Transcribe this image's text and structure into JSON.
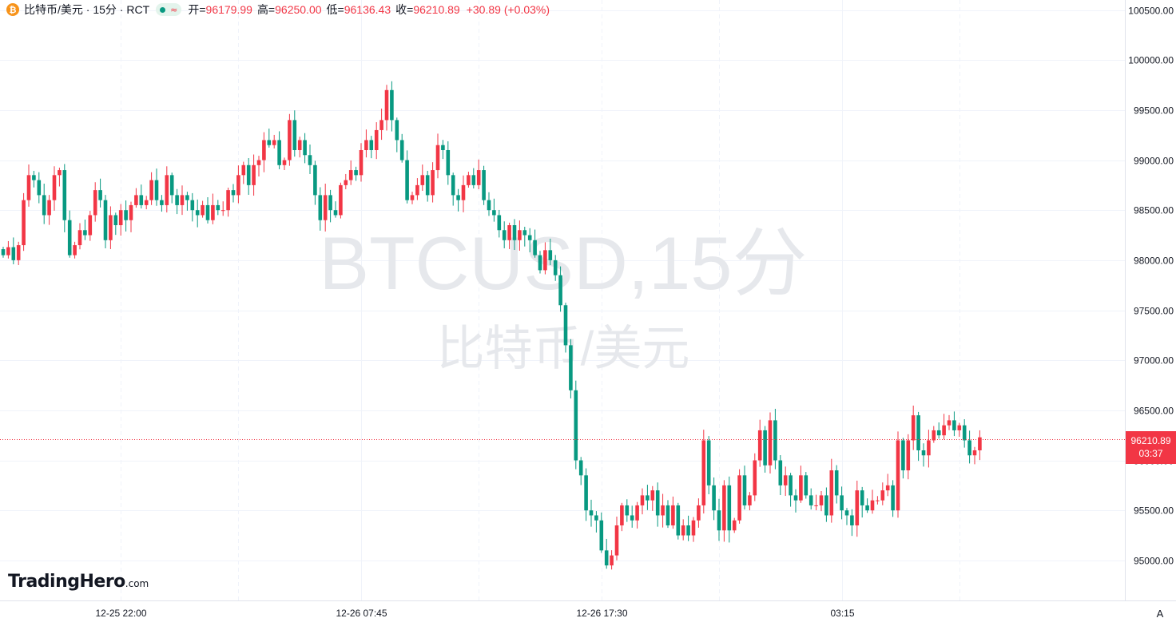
{
  "legend": {
    "coin_icon": "bitcoin-icon",
    "coin_glyph": "₿",
    "symbol": "比特币/美元 · 15分 · RCT",
    "status_delay_glyph": "≈",
    "open_label": "开=",
    "open": "96179.99",
    "high_label": "高=",
    "high": "96250.00",
    "low_label": "低=",
    "low": "96136.43",
    "close_label": "收=",
    "close": "96210.89",
    "change": "+30.89 (+0.03%)"
  },
  "watermark": {
    "line1": "BTCUSD,15分",
    "line2": "比特币/美元"
  },
  "last_price": {
    "value": "96210.89",
    "countdown": "03:37"
  },
  "logo": {
    "main": "TradingHero",
    "suffix": ".com"
  },
  "auto_button": "A",
  "colors": {
    "up": "#f23645",
    "down": "#089981",
    "grid": "#f0f3fa",
    "axis_text": "#131722"
  },
  "chart_data": {
    "type": "candlestick",
    "interval": "15分",
    "y_range": [
      94600,
      100600
    ],
    "y_ticks": [
      95000,
      95500,
      96000,
      96500,
      97000,
      97500,
      98000,
      98500,
      99000,
      99500,
      100000,
      100500
    ],
    "y_tick_labels": [
      "95000.00",
      "95500.00",
      "96000.00",
      "96500.00",
      "97000.00",
      "97500.00",
      "98000.00",
      "98500.00",
      "99000.00",
      "99500.00",
      "100000.00",
      "100500.00"
    ],
    "x_labels": [
      "12-25 22:00",
      "12-26 07:45",
      "12-26 17:30",
      "03:15"
    ],
    "last_price": 96210.89,
    "closes": [
      98050,
      98130,
      98000,
      98150,
      98600,
      98850,
      98800,
      98650,
      98450,
      98600,
      98850,
      98900,
      98400,
      98050,
      98150,
      98300,
      98250,
      98450,
      98700,
      98600,
      98200,
      98450,
      98350,
      98500,
      98400,
      98550,
      98650,
      98550,
      98600,
      98800,
      98600,
      98550,
      98850,
      98650,
      98550,
      98650,
      98600,
      98500,
      98450,
      98550,
      98400,
      98550,
      98500,
      98500,
      98700,
      98650,
      98850,
      98950,
      98750,
      98950,
      99000,
      99200,
      99150,
      99200,
      98950,
      99000,
      99400,
      99100,
      99200,
      99050,
      98950,
      98650,
      98400,
      98650,
      98500,
      98450,
      98750,
      98800,
      98900,
      98850,
      99100,
      99200,
      99100,
      99300,
      99400,
      99700,
      99400,
      99200,
      99000,
      98600,
      98650,
      98750,
      98850,
      98650,
      98900,
      99150,
      99100,
      98850,
      98650,
      98600,
      98750,
      98850,
      98750,
      98900,
      98600,
      98500,
      98450,
      98300,
      98200,
      98350,
      98200,
      98300,
      98250,
      98200,
      98050,
      97900,
      98100,
      98000,
      97850,
      97550,
      97150,
      96700,
      96000,
      95850,
      95500,
      95450,
      95400,
      95100,
      94950,
      95050,
      95350,
      95550,
      95450,
      95400,
      95550,
      95650,
      95600,
      95700,
      95450,
      95550,
      95350,
      95550,
      95250,
      95350,
      95250,
      95400,
      95550,
      96200,
      95750,
      95500,
      95300,
      95750,
      95300,
      95400,
      95850,
      95550,
      95650,
      96000,
      96300,
      95950,
      96400,
      96000,
      95750,
      95850,
      95650,
      95600,
      95850,
      95650,
      95550,
      95550,
      95650,
      95450,
      95900,
      95650,
      95500,
      95450,
      95350,
      95700,
      95550,
      95500,
      95600,
      95600,
      95700,
      95750,
      95500,
      96200,
      95900,
      96200,
      96450,
      96100,
      96050,
      96200,
      96300,
      96250,
      96350,
      96400,
      96300,
      96350,
      96200,
      96050,
      96100,
      96230
    ],
    "ohlc_shown": {
      "open": 96179.99,
      "high": 96250.0,
      "low": 96136.43,
      "close": 96210.89
    }
  }
}
